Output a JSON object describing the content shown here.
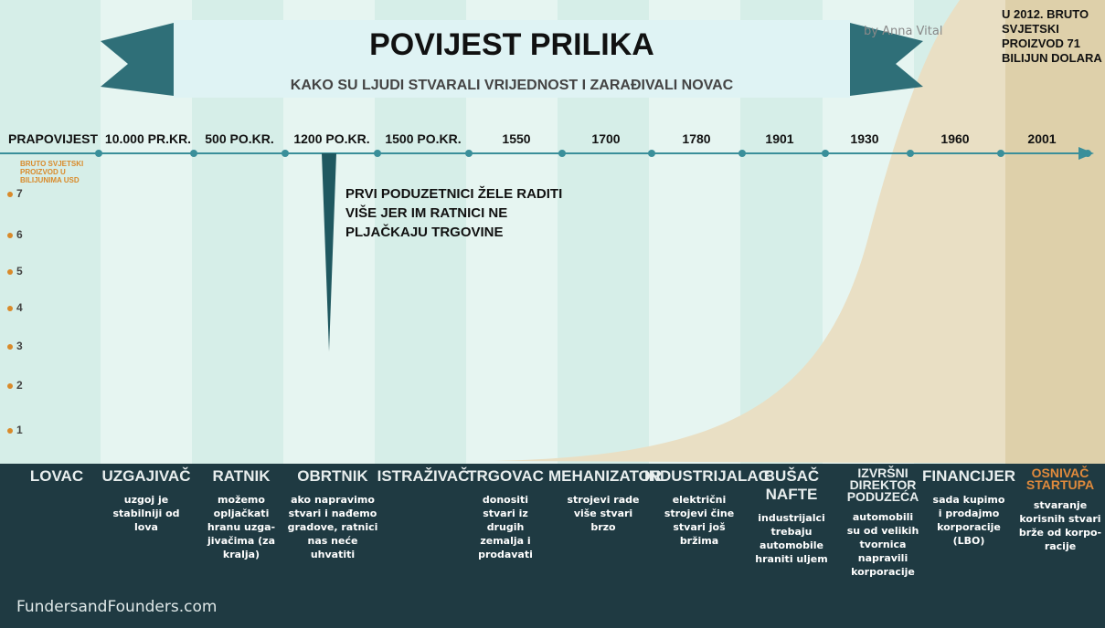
{
  "header": {
    "title": "POVIJEST PRILIKA",
    "subtitle": "KAKO SU LJUDI STVARALI VRIJEDNOST I ZARAĐIVALI NOVAC",
    "author": "by Anna Vital",
    "note": [
      "U 2012. BRUTO",
      "SVJETSKI",
      "PROIZVOD 71",
      "BILIJUN DOLARA"
    ]
  },
  "timeline": [
    "PRAPOVIJEST",
    "10.000 PR.KR.",
    "500 PO.KR.",
    "1200 PO.KR.",
    "1500 PO.KR.",
    "1550",
    "1700",
    "1780",
    "1901",
    "1930",
    "1960",
    "2001"
  ],
  "axis": {
    "label": [
      "BRUTO SVJETSKI",
      "PROIZVOD U",
      "BILIJUNIMA USD"
    ],
    "ticks": [
      7,
      6,
      5,
      4,
      3,
      2,
      1
    ]
  },
  "callout": [
    "PRVI PODUZETNICI ŽELE RADITI",
    "VIŠE JER IM RATNICI NE",
    "PLJAČKAJU TRGOVINE"
  ],
  "roles": [
    {
      "name": [
        "LOVAC"
      ],
      "text": []
    },
    {
      "name": [
        "UZGAJIVAČ"
      ],
      "text": [
        "uzgoj je",
        "stabilniji od",
        "lova"
      ]
    },
    {
      "name": [
        "RATNIK"
      ],
      "text": [
        "možemo",
        "opljačkati",
        "hranu uzga-",
        "jivačima (za",
        "kralja)"
      ]
    },
    {
      "name": [
        "OBRTNIK"
      ],
      "text": [
        "ako napravimo",
        "stvari i nađemo",
        "gradove, ratnici",
        "nas neće",
        "uhvatiti"
      ]
    },
    {
      "name": [
        "ISTRAŽIVAČ"
      ],
      "text": []
    },
    {
      "name": [
        "TRGOVAC"
      ],
      "text": [
        "donositi",
        "stvari iz",
        "drugih",
        "zemalja i",
        "prodavati"
      ]
    },
    {
      "name": [
        "MEHANIZATOR"
      ],
      "text": [
        "strojevi rade",
        "više stvari",
        "brzo"
      ]
    },
    {
      "name": [
        "INDUSTRIJALAC"
      ],
      "text": [
        "električni",
        "strojevi čine",
        "stvari još",
        "bržima"
      ]
    },
    {
      "name": [
        "BUŠAČ NAFTE"
      ],
      "text": [
        "industrijalci",
        "trebaju",
        "automobile",
        "hraniti uljem"
      ]
    },
    {
      "name": [
        "IZVRŠNI",
        "DIREKTOR",
        "PODUZEĆA"
      ],
      "text": [
        "automobili",
        "su od velikih",
        "tvornica",
        "napravili",
        "korporacije"
      ]
    },
    {
      "name": [
        "FINANCIJER"
      ],
      "text": [
        "sada kupimo",
        "i prodajmo",
        "korporacije",
        "(LBO)"
      ]
    },
    {
      "name": [
        "OSNIVAČ",
        "STARTUPA"
      ],
      "text": [
        "stvaranje",
        "korisnih stvari",
        "brže od korpo-",
        "racije"
      ]
    }
  ],
  "footer": "FundersandFounders.com"
}
